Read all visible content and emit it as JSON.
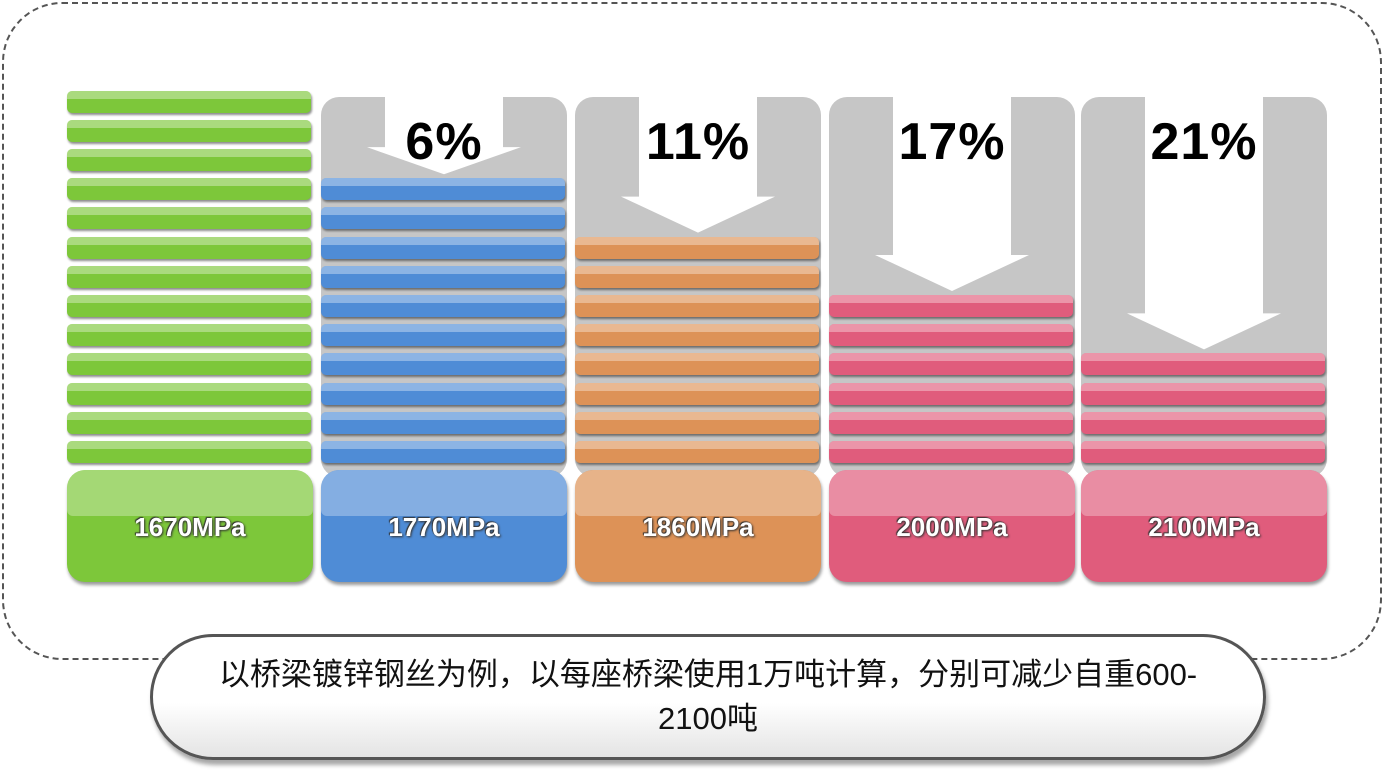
{
  "columns": [
    {
      "label": "1670MPa",
      "percent": "",
      "slabs": 13,
      "color": "#7dc73a"
    },
    {
      "label": "1770MPa",
      "percent": "6%",
      "slabs": 10,
      "color": "#4f8cd6"
    },
    {
      "label": "1860MPa",
      "percent": "11%",
      "slabs": 8,
      "color": "#dd9257"
    },
    {
      "label": "2000MPa",
      "percent": "17%",
      "slabs": 6,
      "color": "#e05c7c"
    },
    {
      "label": "2100MPa",
      "percent": "21%",
      "slabs": 4,
      "color": "#e05c7c"
    }
  ],
  "caption": {
    "text": "以桥梁镀锌钢丝为例，以每座桥梁使用1万吨计算，分别可减少自重600-2100吨"
  }
}
